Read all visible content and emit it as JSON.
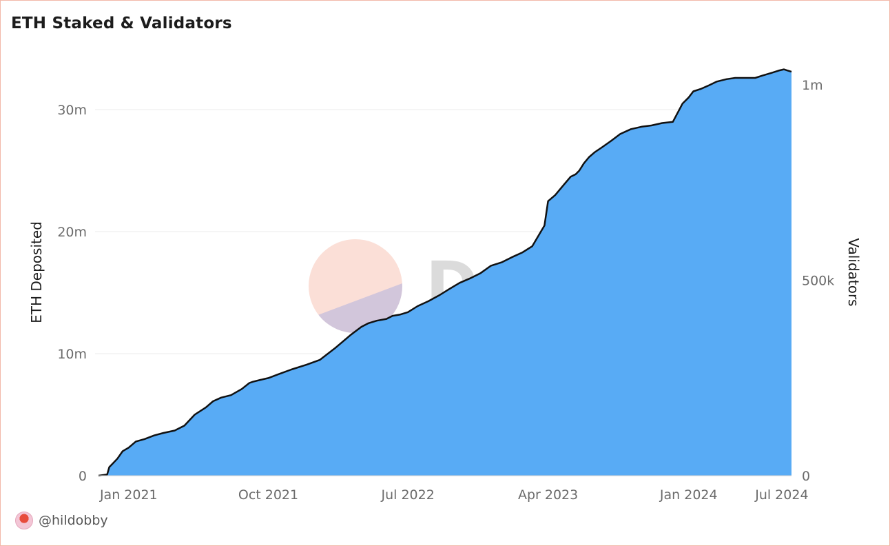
{
  "title": "ETH Staked & Validators",
  "watermark": {
    "text": "Dune"
  },
  "footer": {
    "author": "@hildobby"
  },
  "colors": {
    "area_fill": "#58abf5",
    "line": "#111111",
    "grid": "#ebebeb",
    "frame_border": "#f2b8a9"
  },
  "chart_data": {
    "type": "area",
    "title": "ETH Staked & Validators",
    "xlabel": "",
    "ylabel": "ETH Deposited",
    "y2label": "Validators",
    "ylim": [
      0,
      30000000
    ],
    "y2lim": [
      0,
      1000000
    ],
    "xlim": [
      "2020-11-03",
      "2024-07-20"
    ],
    "y_ticks": [
      {
        "value": 0,
        "label": "0"
      },
      {
        "value": 10000000,
        "label": "10m"
      },
      {
        "value": 20000000,
        "label": "20m"
      },
      {
        "value": 30000000,
        "label": "30m"
      }
    ],
    "y2_ticks": [
      {
        "value": 0,
        "label": "0"
      },
      {
        "value": 500000,
        "label": "500k"
      },
      {
        "value": 1000000,
        "label": "1m"
      }
    ],
    "x_ticks": [
      {
        "value": "2021-01-01",
        "label": "Jan 2021"
      },
      {
        "value": "2021-10-01",
        "label": "Oct 2021"
      },
      {
        "value": "2022-07-01",
        "label": "Jul 2022"
      },
      {
        "value": "2023-04-01",
        "label": "Apr 2023"
      },
      {
        "value": "2024-01-01",
        "label": "Jan 2024"
      },
      {
        "value": "2024-07-01",
        "label": "Jul 2024"
      }
    ],
    "grid": true,
    "legend": "none",
    "series": [
      {
        "x": [
          "2020-11-03",
          "2020-11-20",
          "2020-11-24",
          "2020-12-01",
          "2020-12-10",
          "2020-12-20",
          "2021-01-01",
          "2021-01-15",
          "2021-02-01",
          "2021-02-20",
          "2021-03-10",
          "2021-04-01",
          "2021-04-20",
          "2021-05-10",
          "2021-06-01",
          "2021-06-15",
          "2021-07-01",
          "2021-07-20",
          "2021-08-10",
          "2021-08-25",
          "2021-09-01",
          "2021-09-15",
          "2021-10-01",
          "2021-10-20",
          "2021-11-15",
          "2021-12-15",
          "2022-01-10",
          "2022-02-10",
          "2022-03-10",
          "2022-04-01",
          "2022-04-15",
          "2022-05-01",
          "2022-05-20",
          "2022-06-01",
          "2022-06-15",
          "2022-07-01",
          "2022-07-20",
          "2022-08-10",
          "2022-09-01",
          "2022-09-20",
          "2022-10-10",
          "2022-11-01",
          "2022-11-20",
          "2022-12-10",
          "2023-01-01",
          "2023-01-20",
          "2023-02-10",
          "2023-03-01",
          "2023-03-25",
          "2023-04-01",
          "2023-04-15",
          "2023-05-01",
          "2023-05-15",
          "2023-05-25",
          "2023-06-01",
          "2023-06-10",
          "2023-06-20",
          "2023-07-01",
          "2023-07-15",
          "2023-08-01",
          "2023-08-20",
          "2023-09-10",
          "2023-10-01",
          "2023-10-20",
          "2023-11-10",
          "2023-12-01",
          "2023-12-20",
          "2024-01-01",
          "2024-01-10",
          "2024-01-25",
          "2024-02-10",
          "2024-02-25",
          "2024-03-15",
          "2024-04-01",
          "2024-04-20",
          "2024-05-10",
          "2024-05-25",
          "2024-06-10",
          "2024-06-25",
          "2024-07-05",
          "2024-07-20"
        ],
        "values": [
          0,
          100000,
          700000,
          1000000,
          1400000,
          2000000,
          2300000,
          2800000,
          3000000,
          3300000,
          3500000,
          3700000,
          4100000,
          5000000,
          5600000,
          6100000,
          6400000,
          6600000,
          7100000,
          7600000,
          7700000,
          7850000,
          8000000,
          8300000,
          8700000,
          9100000,
          9500000,
          10500000,
          11500000,
          12200000,
          12500000,
          12700000,
          12850000,
          13100000,
          13200000,
          13400000,
          13900000,
          14300000,
          14800000,
          15300000,
          15800000,
          16200000,
          16600000,
          17200000,
          17500000,
          17900000,
          18300000,
          18800000,
          20500000,
          22500000,
          23000000,
          23800000,
          24500000,
          24700000,
          25000000,
          25600000,
          26100000,
          26500000,
          26900000,
          27400000,
          28000000,
          28400000,
          28600000,
          28700000,
          28900000,
          29000000,
          30500000,
          31000000,
          31500000,
          31700000,
          32000000,
          32300000,
          32500000,
          32600000,
          32600000,
          32600000,
          32800000,
          33000000,
          33200000,
          33300000,
          33100000
        ]
      }
    ]
  }
}
